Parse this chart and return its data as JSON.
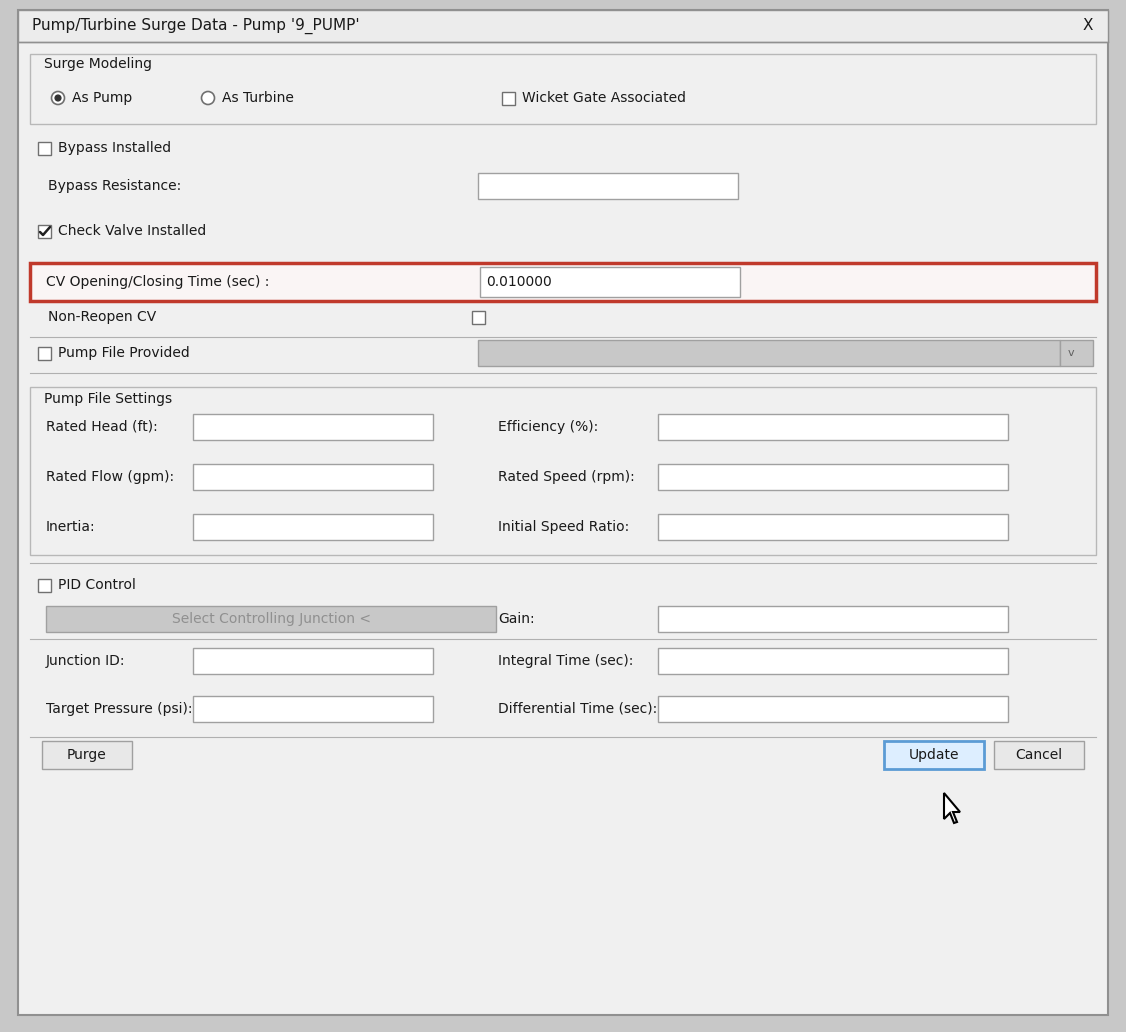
{
  "title": "Pump/Turbine Surge Data - Pump '9_PUMP'",
  "bg_outer": "#c8c8c8",
  "dialog_bg": "#f0f0f0",
  "white": "#ffffff",
  "border_color": "#a0a0a0",
  "red_highlight": "#c0392b",
  "blue_highlight": "#5b9bd5",
  "text_color": "#1a1a1a",
  "disabled_bg": "#c8c8c8",
  "section_border": "#b8b8b8",
  "fields": {
    "surge_modeling_label": "Surge Modeling",
    "as_pump": "As Pump",
    "as_turbine": "As Turbine",
    "wicket_gate": "Wicket Gate Associated",
    "bypass_installed": "Bypass Installed",
    "bypass_resistance": "Bypass Resistance:",
    "check_valve_installed": "Check Valve Installed",
    "cv_opening_closing": "CV Opening/Closing Time (sec) :",
    "cv_value": "0.010000",
    "non_reopen_cv": "Non-Reopen CV",
    "pump_file_provided": "Pump File Provided",
    "pump_file_settings": "Pump File Settings",
    "rated_head": "Rated Head (ft):",
    "efficiency": "Efficiency (%):",
    "rated_flow": "Rated Flow (gpm):",
    "rated_speed": "Rated Speed (rpm):",
    "inertia": "Inertia:",
    "initial_speed_ratio": "Initial Speed Ratio:",
    "pid_control": "PID Control",
    "select_controlling": "Select Controlling Junction <",
    "gain": "Gain:",
    "junction_id": "Junction ID:",
    "integral_time": "Integral Time (sec):",
    "target_pressure": "Target Pressure (psi):",
    "differential_time": "Differential Time (sec):",
    "purge": "Purge",
    "update": "Update",
    "cancel": "Cancel"
  }
}
